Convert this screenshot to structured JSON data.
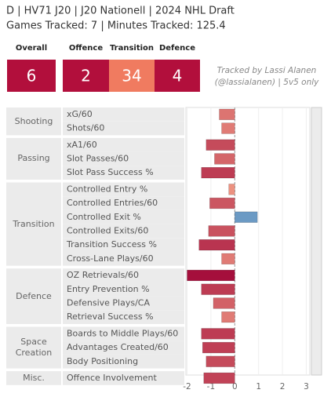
{
  "header": {
    "title": "D | HV71 J20 | J20 Nationell | 2024 NHL Draft",
    "subtitle": "Games Tracked: 7 | Minutes Tracked: 125.4"
  },
  "summary": {
    "items": [
      {
        "label": "Overall",
        "value": 6,
        "color": "#b20f3c"
      },
      {
        "label": "Offence",
        "value": 2,
        "color": "#b20f3c"
      },
      {
        "label": "Transition",
        "value": 34,
        "color": "#f07b60"
      },
      {
        "label": "Defence",
        "value": 4,
        "color": "#b20f3c"
      }
    ],
    "note": [
      "Tracked by Lassi Alanen",
      "(@lassialanen) | 5v5 only"
    ]
  },
  "chart_data": {
    "type": "bar",
    "orientation": "horizontal",
    "groups": [
      {
        "name": "Shooting",
        "categories": [
          "xG/60",
          "Shots/60"
        ],
        "values": [
          -0.65,
          -0.55
        ]
      },
      {
        "name": "Passing",
        "categories": [
          "xA1/60",
          "Slot Passes/60",
          "Slot Pass Success %"
        ],
        "values": [
          -1.2,
          -0.85,
          -1.4
        ]
      },
      {
        "name": "Transition",
        "categories": [
          "Controlled Entry %",
          "Controlled Entries/60",
          "Controlled Exit %",
          "Controlled Exits/60",
          "Transition Success %",
          "Cross-Lane Plays/60"
        ],
        "values": [
          -0.25,
          -1.05,
          0.95,
          -1.1,
          -1.5,
          -0.55
        ]
      },
      {
        "name": "Defence",
        "categories": [
          "OZ Retrievals/60",
          "Entry Prevention %",
          "Defensive Plays/CA",
          "Retrieval Success %"
        ],
        "values": [
          -2.0,
          -1.4,
          -0.9,
          -0.55
        ]
      },
      {
        "name": "Space Creation",
        "categories": [
          "Boards to Middle Plays/60",
          "Advantages Created/60",
          "Body Positioning"
        ],
        "values": [
          -1.4,
          -1.35,
          -1.2
        ]
      },
      {
        "name": "Misc.",
        "categories": [
          "Offence Involvement"
        ],
        "values": [
          -1.3
        ]
      }
    ],
    "xlim": [
      -2.05,
      3.15
    ],
    "xticks": [
      -2,
      -1,
      0,
      1,
      2,
      3
    ],
    "colors": {
      "low": "#a50f3c",
      "mid": "#f6a48a",
      "high": "#6b9ac4"
    }
  }
}
